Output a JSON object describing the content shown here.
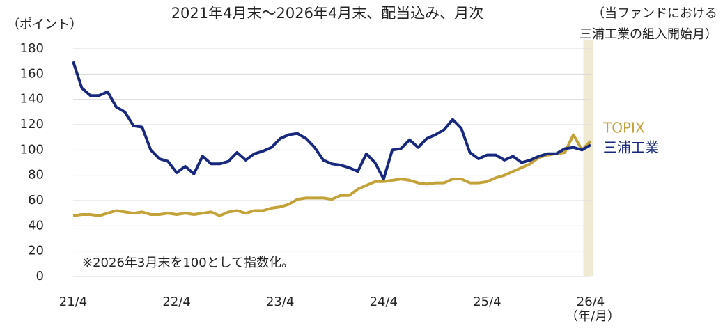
{
  "chart_data": {
    "type": "line",
    "title": "2021年4月末～2026年4月末、配当込み、月次",
    "y_label": "（ポイント）",
    "x_unit": "（年/月）",
    "note": "※2026年3月末を100として指数化。",
    "annotation": [
      "（当ファンドにおける",
      "三浦工業の組入開始月）"
    ],
    "categories": [
      "21/4",
      null,
      null,
      null,
      null,
      null,
      null,
      null,
      null,
      null,
      null,
      null,
      "22/4",
      null,
      null,
      null,
      null,
      null,
      null,
      null,
      null,
      null,
      null,
      null,
      "23/4",
      null,
      null,
      null,
      null,
      null,
      null,
      null,
      null,
      null,
      null,
      null,
      "24/4",
      null,
      null,
      null,
      null,
      null,
      null,
      null,
      null,
      null,
      null,
      null,
      "25/4",
      null,
      null,
      null,
      null,
      null,
      null,
      null,
      null,
      null,
      null,
      null,
      "26/4"
    ],
    "series": [
      {
        "name": "TOPIX",
        "color": "#c4a23a",
        "values": [
          48,
          49,
          49,
          48,
          50,
          52,
          51,
          50,
          51,
          49,
          49,
          50,
          49,
          50,
          49,
          50,
          51,
          48,
          51,
          52,
          50,
          52,
          52,
          54,
          55,
          57,
          61,
          62,
          62,
          62,
          61,
          64,
          64,
          69,
          72,
          75,
          75,
          76,
          77,
          76,
          74,
          73,
          74,
          74,
          77,
          77,
          74,
          74,
          75,
          78,
          80,
          83,
          86,
          89,
          94,
          96,
          97,
          98,
          112,
          100,
          107
        ]
      },
      {
        "name": "三浦工業",
        "color": "#17287e",
        "values": [
          170,
          149,
          143,
          143,
          146,
          134,
          130,
          119,
          118,
          100,
          93,
          91,
          82,
          87,
          81,
          95,
          89,
          89,
          91,
          98,
          92,
          97,
          99,
          102,
          109,
          112,
          113,
          109,
          102,
          92,
          89,
          88,
          86,
          83,
          97,
          90,
          77,
          100,
          101,
          108,
          102,
          109,
          112,
          116,
          124,
          117,
          98,
          93,
          96,
          96,
          92,
          95,
          90,
          92,
          95,
          97,
          97,
          101,
          102,
          100,
          104
        ]
      }
    ],
    "ylim": [
      0,
      180
    ],
    "yticks": [
      0,
      20,
      40,
      60,
      80,
      100,
      120,
      140,
      160,
      180
    ],
    "grid": true
  }
}
